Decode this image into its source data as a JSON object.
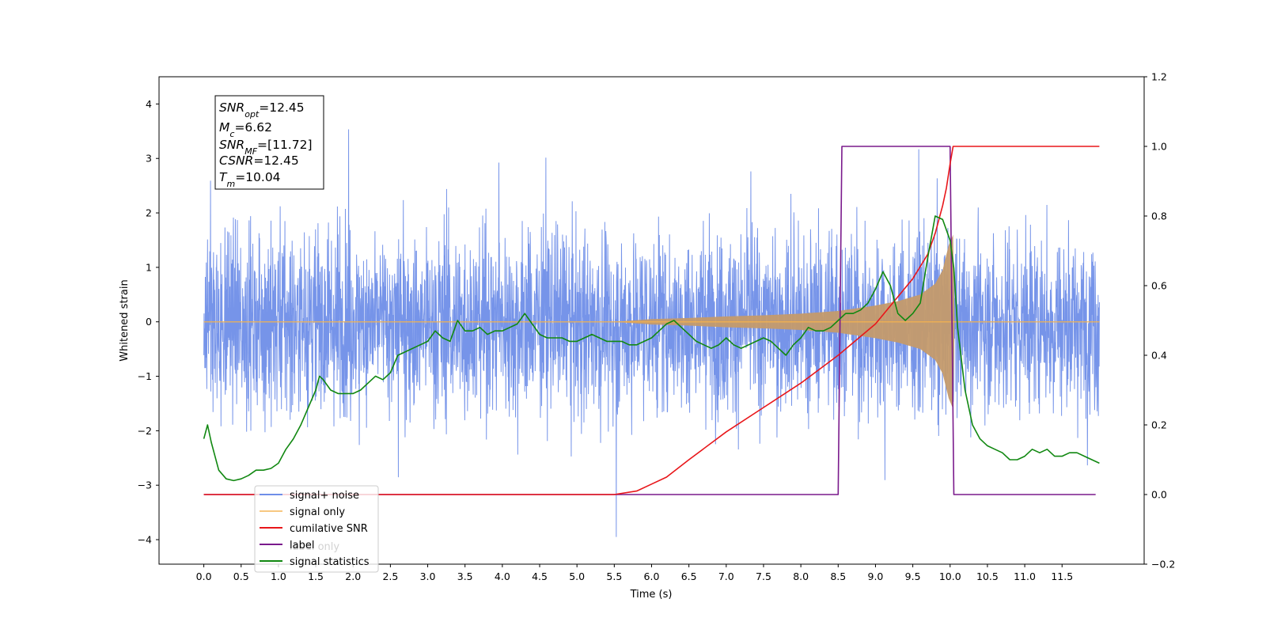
{
  "chart_data": {
    "type": "line",
    "xlabel": "Time (s)",
    "ylabel": "Whitened strain",
    "xlim": [
      -0.6,
      12.6
    ],
    "ylim": [
      -4.45,
      4.5
    ],
    "y2lim": [
      -0.2,
      1.2
    ],
    "x_ticks": [
      "0.0",
      "0.5",
      "1.0",
      "1.5",
      "2.0",
      "2.5",
      "3.0",
      "3.5",
      "4.0",
      "4.5",
      "5.0",
      "5.5",
      "6.0",
      "6.5",
      "7.0",
      "7.5",
      "8.0",
      "8.5",
      "9.0",
      "9.5",
      "10.0",
      "10.5",
      "11.0",
      "11.5"
    ],
    "y_ticks": [
      "−4",
      "−3",
      "−2",
      "−1",
      "0",
      "1",
      "2",
      "3",
      "4"
    ],
    "y2_ticks": [
      "−0.2",
      "0.0",
      "0.2",
      "0.4",
      "0.6",
      "0.8",
      "1.0",
      "1.2"
    ],
    "annotation": {
      "snr_opt": {
        "sym": "SNR",
        "sub": "opt",
        "val": "=12.45"
      },
      "mc": {
        "sym": "M",
        "sub": "c",
        "val": "=6.62"
      },
      "snr_mf": {
        "sym": "SNR",
        "sub": "MF",
        "val": "=[11.72]"
      },
      "csnr": {
        "sym": "CSNR",
        "sub": "",
        "val": "=12.45"
      },
      "tm": {
        "sym": "T",
        "sub": "m",
        "val": "=10.04"
      }
    },
    "legend": {
      "placement": "lower-left",
      "entries": [
        "signal+ noise",
        "signal only",
        "cumilative SNR",
        "label",
        "signal statistics"
      ],
      "obscured_text": [
        "label only"
      ]
    },
    "colors": {
      "noise": "#6f8ee8",
      "signal": "#f5b24c",
      "signal_fill": "#c49a6c",
      "csnr": "#e8161a",
      "label": "#7a1a8c",
      "stats": "#118811"
    },
    "series": [
      {
        "name": "signal+ noise",
        "axis": "left",
        "note": "whitened noise band, approx amplitude envelope",
        "band": {
          "x": [
            0.0,
            12.0
          ],
          "min": -3.5,
          "max": 3.5
        }
      },
      {
        "name": "signal only",
        "axis": "left",
        "envelope": {
          "x": [
            0.0,
            5.5,
            6.0,
            6.5,
            7.0,
            7.5,
            8.0,
            8.5,
            9.0,
            9.3,
            9.6,
            9.8,
            9.9,
            9.98,
            10.04,
            10.06,
            12.0
          ],
          "y": [
            0.0,
            0.0,
            0.05,
            0.07,
            0.1,
            0.12,
            0.15,
            0.2,
            0.3,
            0.38,
            0.5,
            0.7,
            0.95,
            1.4,
            1.6,
            0.0,
            0.0
          ]
        }
      },
      {
        "name": "cumilative SNR",
        "axis": "right",
        "x": [
          0.0,
          5.0,
          5.5,
          5.8,
          6.0,
          6.2,
          6.5,
          7.0,
          7.5,
          8.0,
          8.5,
          9.0,
          9.5,
          9.7,
          9.8,
          9.9,
          9.95,
          10.0,
          10.04,
          10.06,
          12.0
        ],
        "y": [
          0.0,
          0.0,
          0.0,
          0.01,
          0.03,
          0.05,
          0.1,
          0.18,
          0.25,
          0.32,
          0.4,
          0.49,
          0.62,
          0.69,
          0.75,
          0.83,
          0.88,
          0.95,
          1.0,
          1.0,
          1.0
        ]
      },
      {
        "name": "label",
        "axis": "right",
        "x": [
          0.0,
          8.5,
          8.55,
          10.0,
          10.05,
          11.95
        ],
        "y": [
          0.0,
          0.0,
          1.0,
          1.0,
          0.0,
          0.0
        ]
      },
      {
        "name": "signal statistics",
        "axis": "right",
        "x": [
          0.0,
          0.05,
          0.1,
          0.2,
          0.3,
          0.4,
          0.5,
          0.6,
          0.7,
          0.8,
          0.9,
          1.0,
          1.1,
          1.2,
          1.3,
          1.4,
          1.5,
          1.55,
          1.6,
          1.7,
          1.8,
          2.0,
          2.1,
          2.2,
          2.3,
          2.4,
          2.5,
          2.6,
          2.7,
          2.8,
          2.9,
          3.0,
          3.1,
          3.2,
          3.3,
          3.4,
          3.5,
          3.6,
          3.7,
          3.8,
          3.9,
          4.0,
          4.1,
          4.2,
          4.3,
          4.4,
          4.5,
          4.6,
          4.7,
          4.8,
          4.9,
          5.0,
          5.1,
          5.2,
          5.3,
          5.4,
          5.5,
          5.6,
          5.7,
          5.8,
          5.9,
          6.0,
          6.1,
          6.2,
          6.3,
          6.4,
          6.5,
          6.6,
          6.7,
          6.8,
          6.9,
          7.0,
          7.1,
          7.2,
          7.3,
          7.4,
          7.5,
          7.6,
          7.7,
          7.8,
          7.9,
          8.0,
          8.1,
          8.2,
          8.3,
          8.4,
          8.5,
          8.6,
          8.7,
          8.8,
          8.9,
          9.0,
          9.1,
          9.2,
          9.3,
          9.4,
          9.5,
          9.6,
          9.7,
          9.8,
          9.9,
          10.0,
          10.05,
          10.1,
          10.2,
          10.3,
          10.4,
          10.5,
          10.6,
          10.7,
          10.8,
          10.9,
          11.0,
          11.1,
          11.2,
          11.3,
          11.4,
          11.5,
          11.6,
          11.7,
          11.8,
          11.9,
          12.0
        ],
        "y": [
          0.16,
          0.2,
          0.15,
          0.07,
          0.045,
          0.04,
          0.045,
          0.055,
          0.07,
          0.07,
          0.075,
          0.09,
          0.13,
          0.16,
          0.2,
          0.25,
          0.3,
          0.34,
          0.33,
          0.3,
          0.29,
          0.29,
          0.3,
          0.32,
          0.34,
          0.33,
          0.35,
          0.4,
          0.41,
          0.42,
          0.43,
          0.44,
          0.47,
          0.45,
          0.44,
          0.5,
          0.47,
          0.47,
          0.48,
          0.46,
          0.47,
          0.47,
          0.48,
          0.49,
          0.52,
          0.49,
          0.46,
          0.45,
          0.45,
          0.45,
          0.44,
          0.44,
          0.45,
          0.46,
          0.45,
          0.44,
          0.44,
          0.44,
          0.43,
          0.43,
          0.44,
          0.45,
          0.47,
          0.49,
          0.5,
          0.48,
          0.46,
          0.44,
          0.43,
          0.42,
          0.43,
          0.45,
          0.43,
          0.42,
          0.43,
          0.44,
          0.45,
          0.44,
          0.42,
          0.4,
          0.43,
          0.45,
          0.48,
          0.47,
          0.47,
          0.48,
          0.5,
          0.52,
          0.52,
          0.53,
          0.55,
          0.59,
          0.64,
          0.6,
          0.52,
          0.5,
          0.52,
          0.55,
          0.68,
          0.8,
          0.79,
          0.73,
          0.65,
          0.48,
          0.3,
          0.2,
          0.16,
          0.14,
          0.13,
          0.12,
          0.1,
          0.1,
          0.11,
          0.13,
          0.12,
          0.13,
          0.11,
          0.11,
          0.12,
          0.12,
          0.11,
          0.1,
          0.09
        ]
      }
    ]
  }
}
